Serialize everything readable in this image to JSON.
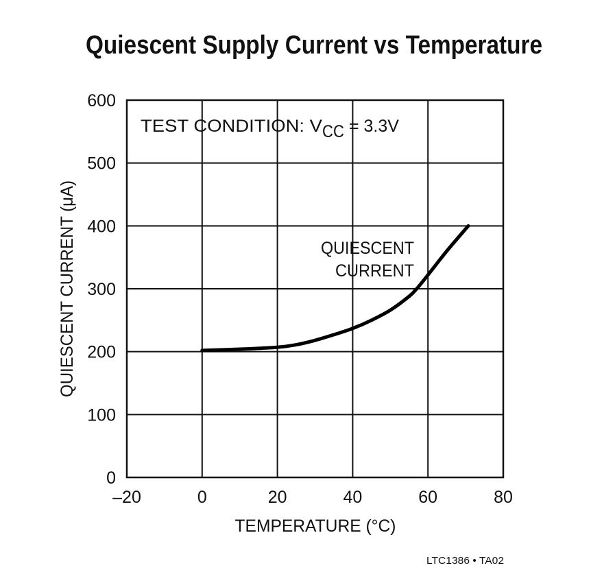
{
  "chart_data": {
    "type": "line",
    "title": "Quiescent Supply Current vs Temperature",
    "xlabel": "TEMPERATURE (°C)",
    "ylabel": "QUIESCENT CURRENT (μA)",
    "xlim": [
      -20,
      80
    ],
    "ylim": [
      0,
      600
    ],
    "xticks": [
      -20,
      0,
      20,
      40,
      60,
      80
    ],
    "xtick_labels": [
      "–20",
      "0",
      "20",
      "40",
      "60",
      "80"
    ],
    "yticks": [
      0,
      100,
      200,
      300,
      400,
      500,
      600
    ],
    "grid": true,
    "annotations": {
      "test_condition": "TEST CONDITION: V",
      "test_condition_sub": "CC",
      "test_condition_value": " = 3.3V",
      "curve_label_line1": "QUIESCENT",
      "curve_label_line2": "CURRENT"
    },
    "series": [
      {
        "x": [
          0,
          10,
          20,
          25,
          30,
          35,
          40,
          45,
          50,
          55,
          57,
          60,
          65,
          70.7
        ],
        "y": [
          202,
          204,
          207,
          211,
          218,
          227,
          237,
          250,
          266,
          288,
          300,
          322,
          360,
          400
        ]
      }
    ],
    "line_color": "#000000"
  },
  "footer": "LTC1386 • TA02"
}
